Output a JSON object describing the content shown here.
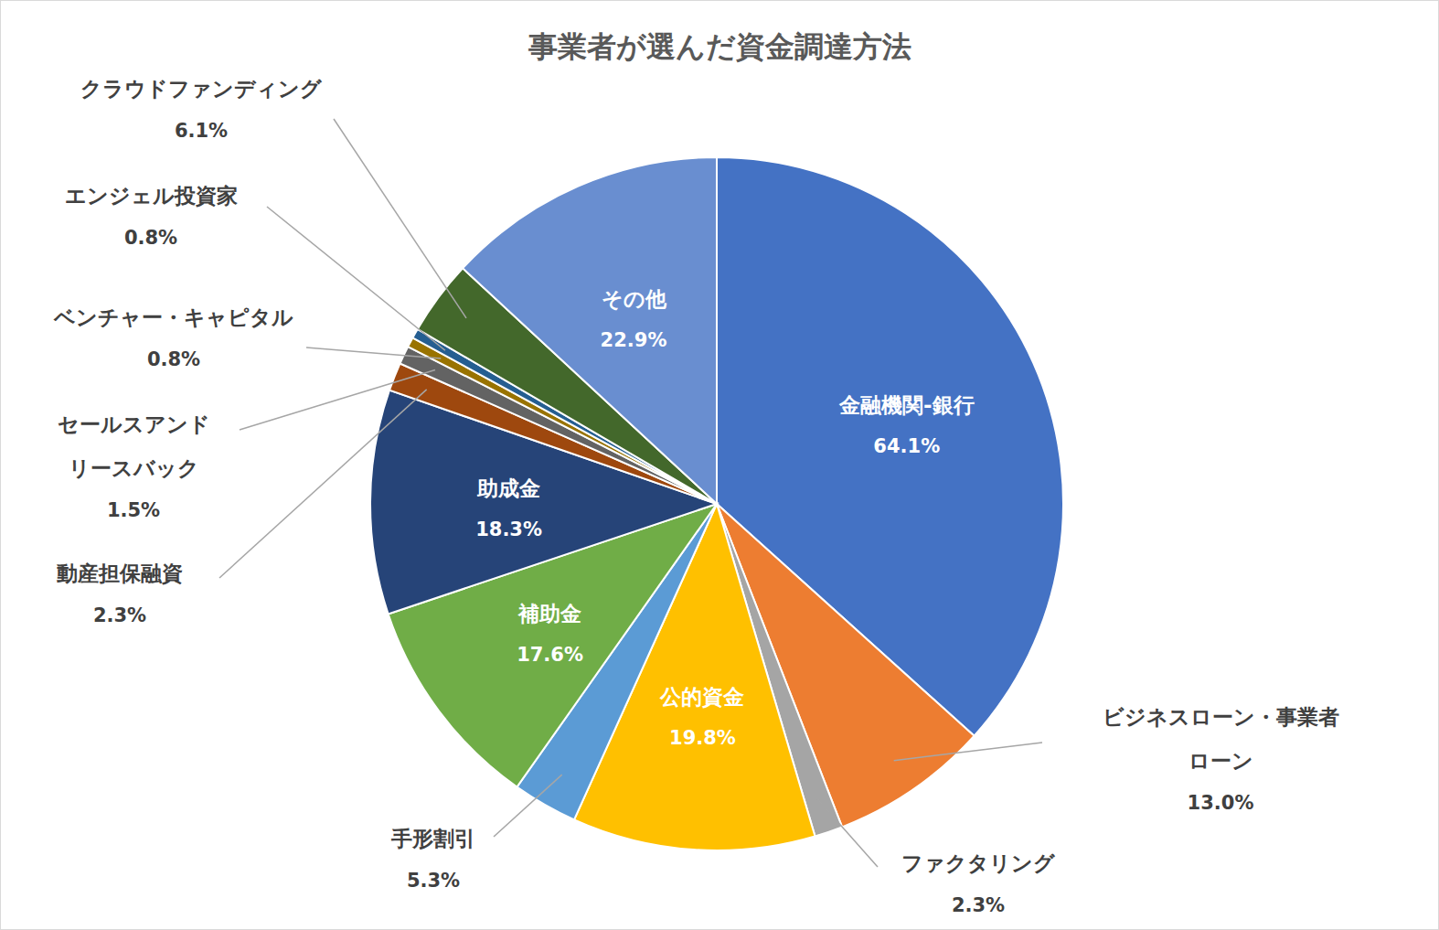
{
  "chart_data": {
    "type": "pie",
    "title": "事業者が選んだ資金調達方法",
    "categories": [
      "金融機関-銀行",
      "ビジネスローン・事業者ローン",
      "ファクタリング",
      "公的資金",
      "手形割引",
      "補助金",
      "助成金",
      "動産担保融資",
      "セールスアンドリースバック",
      "ベンチャー・キャピタル",
      "エンジェル投資家",
      "クラウドファンディング",
      "その他"
    ],
    "values": [
      64.1,
      13.0,
      2.3,
      19.8,
      5.3,
      17.6,
      18.3,
      2.3,
      1.5,
      0.8,
      0.8,
      6.1,
      22.9
    ],
    "value_labels": [
      "64.1%",
      "13.0%",
      "2.3%",
      "19.8%",
      "5.3%",
      "17.6%",
      "18.3%",
      "2.3%",
      "1.5%",
      "0.8%",
      "0.8%",
      "6.1%",
      "22.9%"
    ],
    "colors": [
      "#4472c4",
      "#ed7d31",
      "#a5a5a5",
      "#ffc000",
      "#5b9bd5",
      "#70ad47",
      "#264478",
      "#9e480e",
      "#636363",
      "#997300",
      "#255e91",
      "#43682b",
      "#698ed0"
    ],
    "data_labels": true
  }
}
